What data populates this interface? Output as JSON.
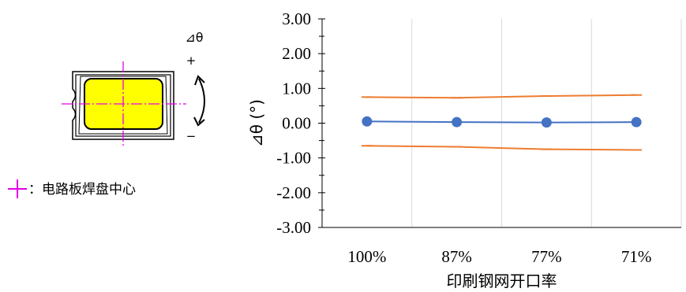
{
  "diagram": {
    "angle_label": "⊿θ",
    "plus_label": "+",
    "minus_label": "−",
    "legend_text": "：电路板焊盘中心",
    "colors": {
      "crosshair": "#e600e6",
      "led_fill": "#ffff00",
      "outline": "#000000"
    }
  },
  "chart_data": {
    "type": "line",
    "xlabel": "印刷钢网开口率",
    "ylabel": "⊿θ (°)",
    "categories": [
      "100%",
      "87%",
      "77%",
      "71%"
    ],
    "ylim": [
      -3.0,
      3.0
    ],
    "yticks": [
      "3.00",
      "2.00",
      "1.00",
      "0.00",
      "-1.00",
      "-2.00",
      "-3.00"
    ],
    "ytick_values": [
      3,
      2,
      1,
      0,
      -1,
      -2,
      -3
    ],
    "grid": "vertical",
    "series": [
      {
        "values": [
          0.05,
          0.03,
          0.02,
          0.03
        ],
        "color": "#4472c4",
        "marker": "circle"
      },
      {
        "values": [
          0.75,
          0.73,
          0.78,
          0.81
        ],
        "color": "#ed7d31",
        "marker": "dash"
      },
      {
        "values": [
          -0.65,
          -0.68,
          -0.75,
          -0.77
        ],
        "color": "#ed7d31",
        "marker": "dash"
      }
    ]
  }
}
